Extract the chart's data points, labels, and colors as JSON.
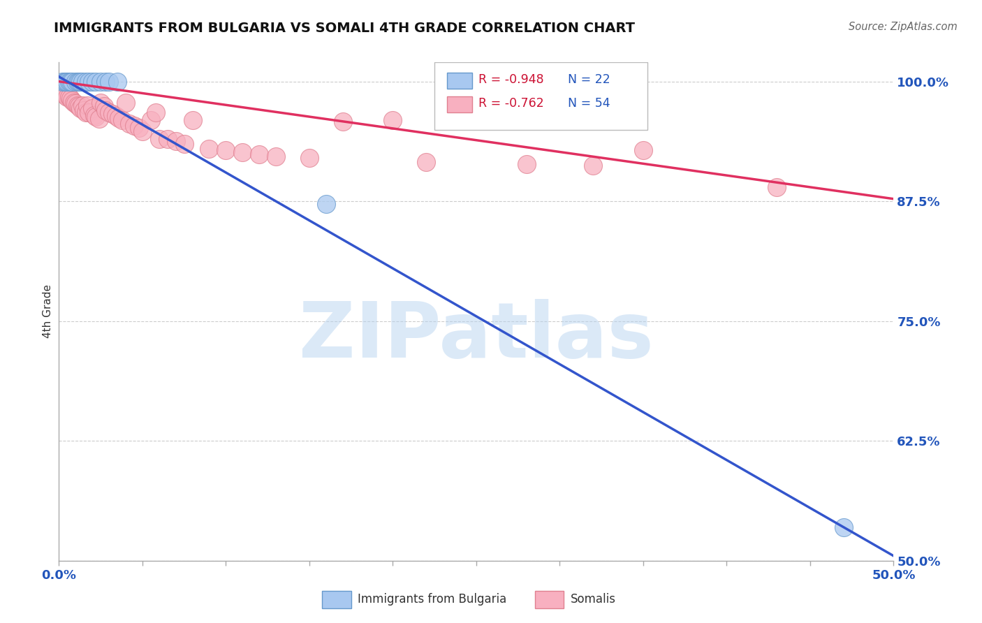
{
  "title": "IMMIGRANTS FROM BULGARIA VS SOMALI 4TH GRADE CORRELATION CHART",
  "source": "Source: ZipAtlas.com",
  "ylabel": "4th Grade",
  "xlim": [
    0.0,
    0.5
  ],
  "ylim": [
    0.5,
    1.02
  ],
  "xtick_positions": [
    0.0,
    0.05,
    0.1,
    0.15,
    0.2,
    0.25,
    0.3,
    0.35,
    0.4,
    0.45,
    0.5
  ],
  "xticklabels": [
    "0.0%",
    "",
    "",
    "",
    "",
    "",
    "",
    "",
    "",
    "",
    "50.0%"
  ],
  "ytick_positions": [
    0.5,
    0.625,
    0.75,
    0.875,
    1.0
  ],
  "yticklabels": [
    "50.0%",
    "62.5%",
    "75.0%",
    "87.5%",
    "100.0%"
  ],
  "bulgaria_color": "#A8C8F0",
  "bulgaria_edge": "#6699CC",
  "somali_color": "#F8B0C0",
  "somali_edge": "#E08090",
  "bulgaria_line_color": "#3355CC",
  "somali_line_color": "#E03060",
  "bulgaria_R": -0.948,
  "bulgaria_N": 22,
  "somali_R": -0.762,
  "somali_N": 54,
  "bulgaria_intercept": 1.005,
  "bulgaria_slope": -1.0,
  "somali_intercept": 1.0,
  "somali_slope": -0.245,
  "watermark": "ZIPatlas",
  "watermark_color": "#B8D4F0",
  "legend_color": "#CC1133",
  "background_color": "#FFFFFF",
  "grid_color": "#CCCCCC",
  "title_color": "#111111",
  "axis_label_color": "#333333",
  "tick_label_color": "#2255BB",
  "bulgaria_points": [
    [
      0.002,
      1.0
    ],
    [
      0.003,
      1.0
    ],
    [
      0.004,
      1.0
    ],
    [
      0.005,
      1.0
    ],
    [
      0.006,
      1.0
    ],
    [
      0.007,
      1.0
    ],
    [
      0.008,
      1.0
    ],
    [
      0.01,
      1.0
    ],
    [
      0.011,
      1.0
    ],
    [
      0.012,
      1.0
    ],
    [
      0.013,
      1.0
    ],
    [
      0.014,
      1.0
    ],
    [
      0.016,
      1.0
    ],
    [
      0.018,
      1.0
    ],
    [
      0.02,
      1.0
    ],
    [
      0.022,
      1.0
    ],
    [
      0.025,
      1.0
    ],
    [
      0.028,
      1.0
    ],
    [
      0.03,
      1.0
    ],
    [
      0.035,
      1.0
    ],
    [
      0.16,
      0.872
    ],
    [
      0.47,
      0.535
    ]
  ],
  "somali_points": [
    [
      0.002,
      0.988
    ],
    [
      0.003,
      0.99
    ],
    [
      0.004,
      0.985
    ],
    [
      0.005,
      0.984
    ],
    [
      0.006,
      0.984
    ],
    [
      0.007,
      0.982
    ],
    [
      0.008,
      0.98
    ],
    [
      0.009,
      0.978
    ],
    [
      0.01,
      0.977
    ],
    [
      0.011,
      0.975
    ],
    [
      0.012,
      0.974
    ],
    [
      0.013,
      0.972
    ],
    [
      0.014,
      0.975
    ],
    [
      0.015,
      0.97
    ],
    [
      0.016,
      0.968
    ],
    [
      0.017,
      0.975
    ],
    [
      0.018,
      0.968
    ],
    [
      0.02,
      0.972
    ],
    [
      0.021,
      0.965
    ],
    [
      0.022,
      0.963
    ],
    [
      0.024,
      0.961
    ],
    [
      0.025,
      0.978
    ],
    [
      0.027,
      0.974
    ],
    [
      0.028,
      0.97
    ],
    [
      0.03,
      0.968
    ],
    [
      0.032,
      0.966
    ],
    [
      0.034,
      0.964
    ],
    [
      0.036,
      0.962
    ],
    [
      0.038,
      0.96
    ],
    [
      0.04,
      0.978
    ],
    [
      0.042,
      0.956
    ],
    [
      0.045,
      0.954
    ],
    [
      0.048,
      0.952
    ],
    [
      0.05,
      0.948
    ],
    [
      0.055,
      0.96
    ],
    [
      0.058,
      0.968
    ],
    [
      0.06,
      0.94
    ],
    [
      0.065,
      0.94
    ],
    [
      0.07,
      0.938
    ],
    [
      0.075,
      0.935
    ],
    [
      0.08,
      0.96
    ],
    [
      0.09,
      0.93
    ],
    [
      0.1,
      0.928
    ],
    [
      0.11,
      0.926
    ],
    [
      0.12,
      0.924
    ],
    [
      0.13,
      0.922
    ],
    [
      0.15,
      0.92
    ],
    [
      0.17,
      0.958
    ],
    [
      0.2,
      0.96
    ],
    [
      0.22,
      0.916
    ],
    [
      0.28,
      0.914
    ],
    [
      0.32,
      0.912
    ],
    [
      0.35,
      0.928
    ],
    [
      0.43,
      0.89
    ]
  ]
}
